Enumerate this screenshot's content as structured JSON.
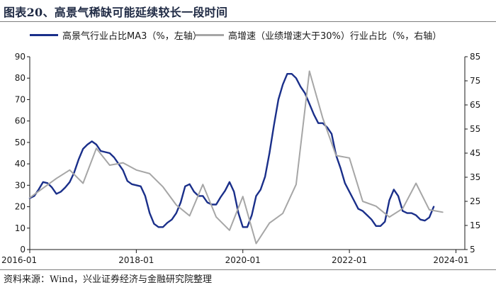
{
  "title": "图表20、高景气稀缺可能延续较长一段时间",
  "source": "资料来源：Wind，兴业证券经济与金融研究院整理",
  "chart_data": {
    "type": "line",
    "x_ticks": [
      "2016-01",
      "2018-01",
      "2020-01",
      "2022-01",
      "2024-01"
    ],
    "left_axis": {
      "min": 0,
      "max": 90,
      "ticks": [
        0,
        10,
        20,
        30,
        40,
        50,
        60,
        70,
        80,
        90
      ]
    },
    "right_axis": {
      "min": 5,
      "max": 85,
      "ticks": [
        5,
        15,
        25,
        35,
        45,
        55,
        65,
        75,
        85
      ]
    },
    "grid": false,
    "legend_position": "top",
    "series": [
      {
        "name": "高景气行业占比MA3（%，左轴）",
        "axis": "left",
        "color": "#1a2f8a",
        "points": [
          [
            "2016-01",
            24
          ],
          [
            "2016-02",
            25
          ],
          [
            "2016-03",
            28
          ],
          [
            "2016-04",
            31.5
          ],
          [
            "2016-05",
            31
          ],
          [
            "2016-06",
            29
          ],
          [
            "2016-07",
            26
          ],
          [
            "2016-08",
            27
          ],
          [
            "2016-09",
            29
          ],
          [
            "2016-10",
            31.5
          ],
          [
            "2016-11",
            36
          ],
          [
            "2016-12",
            42
          ],
          [
            "2017-01",
            47
          ],
          [
            "2017-02",
            49
          ],
          [
            "2017-03",
            50.5
          ],
          [
            "2017-04",
            49
          ],
          [
            "2017-05",
            46
          ],
          [
            "2017-06",
            45.5
          ],
          [
            "2017-07",
            45
          ],
          [
            "2017-08",
            43
          ],
          [
            "2017-09",
            40
          ],
          [
            "2017-10",
            37
          ],
          [
            "2017-11",
            32
          ],
          [
            "2017-12",
            30.5
          ],
          [
            "2018-01",
            30
          ],
          [
            "2018-02",
            29.5
          ],
          [
            "2018-03",
            25
          ],
          [
            "2018-04",
            17
          ],
          [
            "2018-05",
            12
          ],
          [
            "2018-06",
            10.5
          ],
          [
            "2018-07",
            10.5
          ],
          [
            "2018-08",
            12.5
          ],
          [
            "2018-09",
            14
          ],
          [
            "2018-10",
            17
          ],
          [
            "2018-11",
            22
          ],
          [
            "2018-12",
            29.5
          ],
          [
            "2019-01",
            30.5
          ],
          [
            "2019-02",
            27
          ],
          [
            "2019-03",
            25
          ],
          [
            "2019-04",
            25
          ],
          [
            "2019-05",
            22
          ],
          [
            "2019-06",
            21
          ],
          [
            "2019-07",
            21
          ],
          [
            "2019-08",
            24.5
          ],
          [
            "2019-09",
            27.5
          ],
          [
            "2019-10",
            31.5
          ],
          [
            "2019-11",
            27
          ],
          [
            "2019-12",
            17
          ],
          [
            "2020-01",
            10.5
          ],
          [
            "2020-02",
            10.5
          ],
          [
            "2020-03",
            16
          ],
          [
            "2020-04",
            25
          ],
          [
            "2020-05",
            28
          ],
          [
            "2020-06",
            34
          ],
          [
            "2020-07",
            45
          ],
          [
            "2020-08",
            58
          ],
          [
            "2020-09",
            70
          ],
          [
            "2020-10",
            77
          ],
          [
            "2020-11",
            82
          ],
          [
            "2020-12",
            82
          ],
          [
            "2021-01",
            80
          ],
          [
            "2021-02",
            76
          ],
          [
            "2021-03",
            73
          ],
          [
            "2021-04",
            68
          ],
          [
            "2021-05",
            63
          ],
          [
            "2021-06",
            59
          ],
          [
            "2021-07",
            59
          ],
          [
            "2021-08",
            57
          ],
          [
            "2021-09",
            54
          ],
          [
            "2021-10",
            44
          ],
          [
            "2021-11",
            38
          ],
          [
            "2021-12",
            31
          ],
          [
            "2022-01",
            27
          ],
          [
            "2022-02",
            23
          ],
          [
            "2022-03",
            19
          ],
          [
            "2022-04",
            18
          ],
          [
            "2022-05",
            16
          ],
          [
            "2022-06",
            14
          ],
          [
            "2022-07",
            11
          ],
          [
            "2022-08",
            11
          ],
          [
            "2022-09",
            13
          ],
          [
            "2022-10",
            23
          ],
          [
            "2022-11",
            28
          ],
          [
            "2022-12",
            25
          ],
          [
            "2023-01",
            18
          ],
          [
            "2023-02",
            17
          ],
          [
            "2023-03",
            17
          ],
          [
            "2023-04",
            16
          ],
          [
            "2023-05",
            14
          ],
          [
            "2023-06",
            13.5
          ],
          [
            "2023-07",
            15
          ],
          [
            "2023-08",
            20
          ]
        ]
      },
      {
        "name": "高增速（业绩增速大于30%）行业占比（%，右轴）",
        "axis": "right",
        "color": "#a6a6a6",
        "points": [
          [
            "2016-01",
            26.5
          ],
          [
            "2016-04",
            30.5
          ],
          [
            "2016-07",
            34.5
          ],
          [
            "2016-10",
            38
          ],
          [
            "2017-01",
            32.5
          ],
          [
            "2017-04",
            47
          ],
          [
            "2017-07",
            40
          ],
          [
            "2017-10",
            41
          ],
          [
            "2018-01",
            38
          ],
          [
            "2018-04",
            36.5
          ],
          [
            "2018-07",
            31
          ],
          [
            "2018-10",
            23.5
          ],
          [
            "2019-01",
            19
          ],
          [
            "2019-04",
            32
          ],
          [
            "2019-07",
            18.5
          ],
          [
            "2019-10",
            13
          ],
          [
            "2020-01",
            27
          ],
          [
            "2020-04",
            7.5
          ],
          [
            "2020-07",
            16
          ],
          [
            "2020-10",
            20
          ],
          [
            "2021-01",
            32
          ],
          [
            "2021-04",
            79
          ],
          [
            "2021-07",
            59.5
          ],
          [
            "2021-10",
            44
          ],
          [
            "2022-01",
            43
          ],
          [
            "2022-04",
            25
          ],
          [
            "2022-07",
            23
          ],
          [
            "2022-10",
            18.5
          ],
          [
            "2023-01",
            22
          ],
          [
            "2023-04",
            32.5
          ],
          [
            "2023-07",
            21.5
          ],
          [
            "2023-10",
            20.5
          ]
        ]
      }
    ]
  }
}
